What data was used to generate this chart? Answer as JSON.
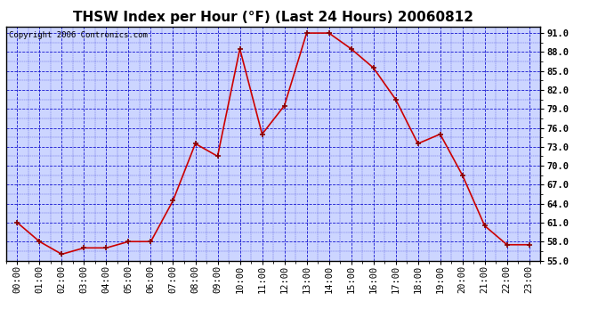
{
  "title": "THSW Index per Hour (°F) (Last 24 Hours) 20060812",
  "copyright": "Copyright 2006 Contronics.com",
  "hours": [
    "00:00",
    "01:00",
    "02:00",
    "03:00",
    "04:00",
    "05:00",
    "06:00",
    "07:00",
    "08:00",
    "09:00",
    "10:00",
    "11:00",
    "12:00",
    "13:00",
    "14:00",
    "15:00",
    "16:00",
    "17:00",
    "18:00",
    "19:00",
    "20:00",
    "21:00",
    "22:00",
    "23:00"
  ],
  "values": [
    61.0,
    58.0,
    56.0,
    57.0,
    57.0,
    58.0,
    58.0,
    64.5,
    73.5,
    71.5,
    88.5,
    75.0,
    79.5,
    91.0,
    91.0,
    88.5,
    85.5,
    80.5,
    73.5,
    75.0,
    68.5,
    60.5,
    57.5,
    57.5
  ],
  "ylim": [
    55.0,
    92.0
  ],
  "yticks": [
    55.0,
    58.0,
    61.0,
    64.0,
    67.0,
    70.0,
    73.0,
    76.0,
    79.0,
    82.0,
    85.0,
    88.0,
    91.0
  ],
  "fig_bg_color": "#ffffff",
  "plot_bg_color": "#ccd5ff",
  "grid_color": "#0000cc",
  "line_color": "#cc0000",
  "marker_color": "#880000",
  "title_fontsize": 11,
  "copyright_fontsize": 6.5,
  "tick_fontsize": 7.5
}
